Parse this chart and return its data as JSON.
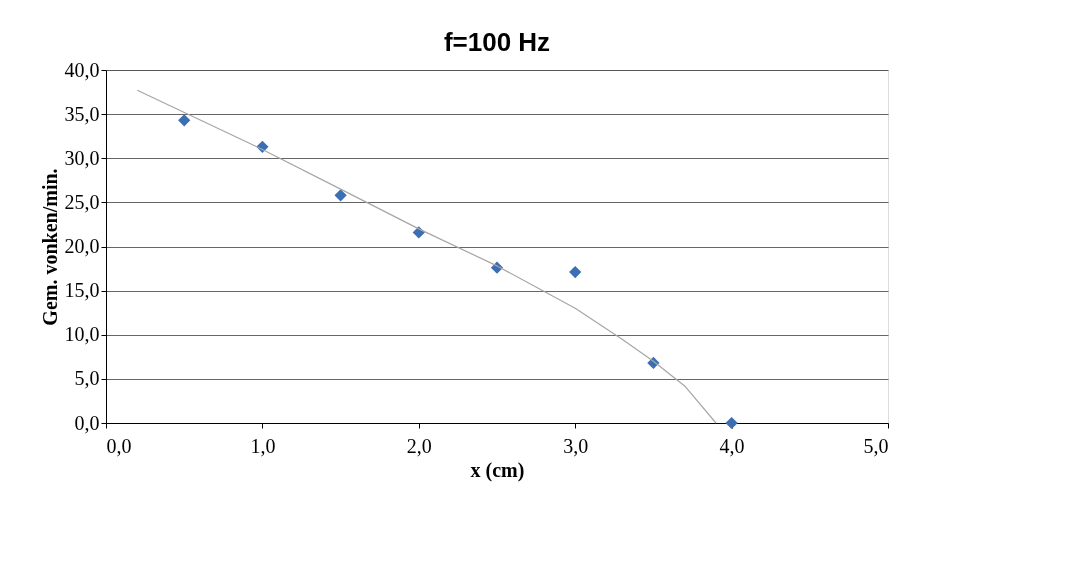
{
  "chart_data": {
    "type": "scatter",
    "title": "f=100 Hz",
    "xlabel": "x (cm)",
    "ylabel": "Gem. vonken/min.",
    "xlim": [
      0,
      5
    ],
    "ylim": [
      0,
      40
    ],
    "xticks": [
      {
        "value": 0,
        "label": "0,0"
      },
      {
        "value": 1,
        "label": "1,0"
      },
      {
        "value": 2,
        "label": "2,0"
      },
      {
        "value": 3,
        "label": "3,0"
      },
      {
        "value": 4,
        "label": "4,0"
      },
      {
        "value": 5,
        "label": "5,0"
      }
    ],
    "yticks": [
      {
        "value": 0,
        "label": "0,0"
      },
      {
        "value": 5,
        "label": "5,0"
      },
      {
        "value": 10,
        "label": "10,0"
      },
      {
        "value": 15,
        "label": "15,0"
      },
      {
        "value": 20,
        "label": "20,0"
      },
      {
        "value": 25,
        "label": "25,0"
      },
      {
        "value": 30,
        "label": "30,0"
      },
      {
        "value": 35,
        "label": "35,0"
      },
      {
        "value": 40,
        "label": "40,0"
      }
    ],
    "grid": "y",
    "marker": "diamond",
    "series": [
      {
        "color": "#3c6eb4",
        "x": [
          0.5,
          1.0,
          1.5,
          2.0,
          2.5,
          3.0,
          3.5,
          4.0
        ],
        "values": [
          34.3,
          31.3,
          25.8,
          21.6,
          17.6,
          17.1,
          6.8,
          0
        ]
      },
      {
        "type": "line",
        "color": "#a6a6a6",
        "marker": "none",
        "x": [
          0.2,
          1.0,
          1.5,
          2.0,
          2.5,
          3.0,
          3.3,
          3.5,
          3.7,
          3.9
        ],
        "values": [
          37.7,
          31.0,
          26.5,
          22.0,
          17.8,
          13.0,
          9.5,
          7.0,
          4.2,
          0
        ]
      }
    ]
  }
}
